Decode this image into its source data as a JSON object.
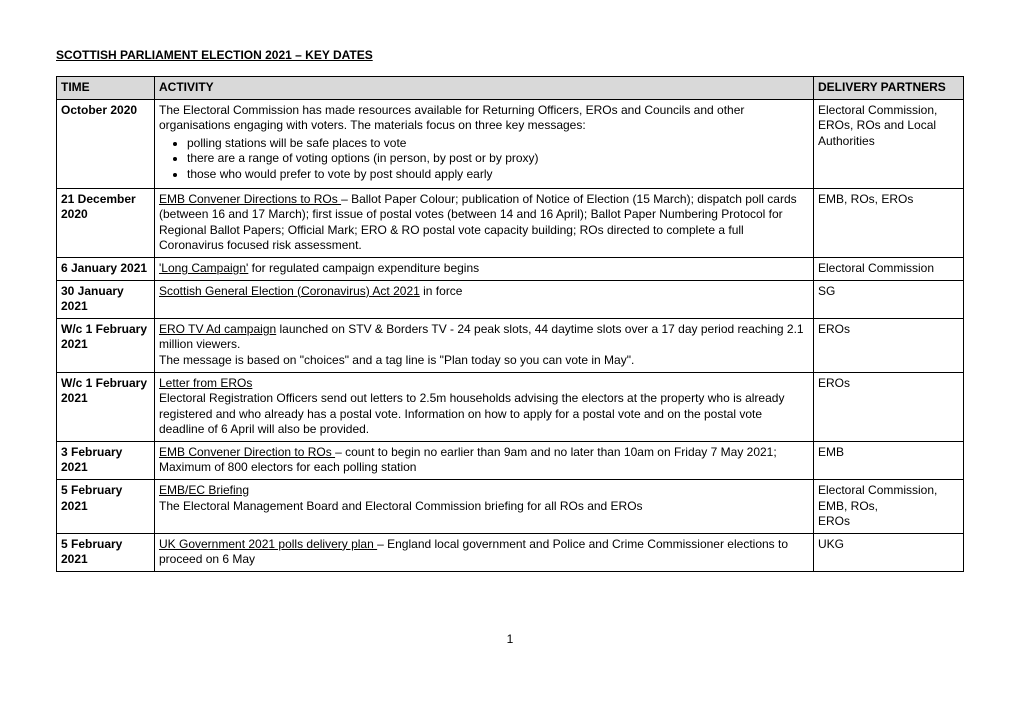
{
  "title": "SCOTTISH PARLIAMENT ELECTION 2021 – KEY DATES",
  "headers": {
    "time": "TIME",
    "activity": "ACTIVITY",
    "partners": "DELIVERY PARTNERS"
  },
  "rows": [
    {
      "time": "October 2020",
      "activity_intro": "The Electoral Commission has made resources available for Returning Officers, EROs and Councils and other organisations engaging with voters. The materials focus on three key messages:",
      "bullets": [
        "polling stations will be safe places to vote",
        "there are a range of voting options (in person, by post or by proxy)",
        "those who would prefer to vote by post should apply early"
      ],
      "partners": "Electoral Commission, EROs, ROs  and Local Authorities"
    },
    {
      "time": "21 December 2020",
      "lead": "EMB Convener Directions to ROs ",
      "rest": "– Ballot Paper Colour; publication of Notice of Election (15 March); dispatch poll cards (between 16 and 17 March); first issue of postal votes (between 14 and 16 April); Ballot Paper Numbering Protocol for Regional Ballot Papers; Official Mark; ERO & RO postal vote capacity building; ROs directed to complete a full Coronavirus focused risk assessment.",
      "partners": "EMB, ROs, EROs"
    },
    {
      "time": "6 January 2021",
      "lead": "'Long Campaign'",
      "rest": " for regulated campaign expenditure begins",
      "partners": "Electoral Commission"
    },
    {
      "time": "30 January 2021",
      "lead": "Scottish General Election (Coronavirus) Act 2021",
      "rest": " in force",
      "partners": "SG"
    },
    {
      "time": "W/c 1 February 2021",
      "lead": "ERO TV Ad campaign",
      "rest": " launched on STV & Borders TV - 24 peak slots, 44 daytime slots over a 17 day period reaching 2.1 million viewers.",
      "extra": "The message is based on \"choices\" and a tag line is \"Plan today so you can vote in May\".",
      "partners": "EROs"
    },
    {
      "time": "W/c  1 February 2021",
      "lead": "Letter from EROs",
      "rest": "",
      "extra": "Electoral Registration Officers send out letters to 2.5m households advising the electors at the property who is already registered and who already has a postal vote. Information on how to apply for a postal vote and on the postal vote deadline of 6 April will also be provided.",
      "partners": "EROs"
    },
    {
      "time": "3 February 2021",
      "lead": "EMB Convener Direction to ROs ",
      "rest": "– count to begin no earlier than 9am and no later than 10am on Friday 7 May 2021; Maximum of 800 electors for each polling station",
      "partners": "EMB"
    },
    {
      "time": "5 February 2021",
      "lead": "EMB/EC Briefing",
      "rest": "",
      "extra": "The Electoral Management Board and Electoral Commission briefing for all ROs and EROs",
      "partners": "Electoral Commission, EMB, ROs,\nEROs"
    },
    {
      "time": "5 February 2021",
      "lead": "UK Government 2021 polls delivery plan ",
      "rest": "– England local government and Police and Crime Commissioner elections to proceed on 6 May",
      "partners": "UKG"
    }
  ],
  "page_number": "1"
}
